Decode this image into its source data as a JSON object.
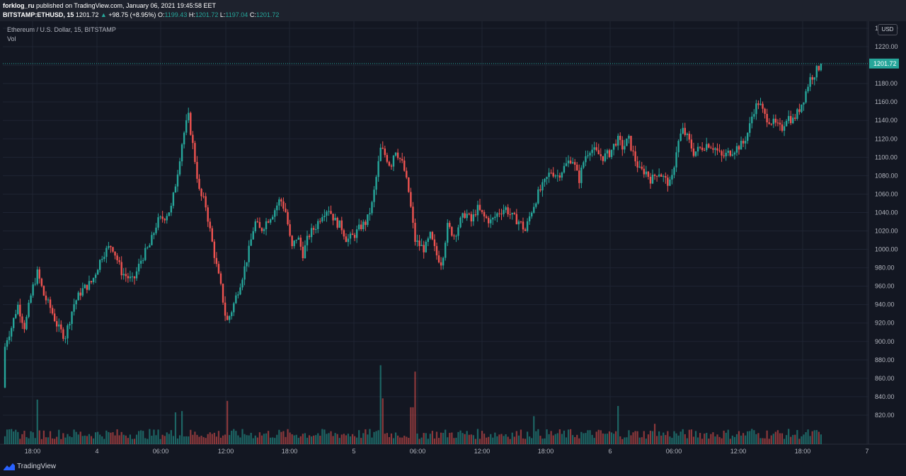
{
  "header": {
    "author": "forklog_ru",
    "published_text": "published on TradingView.com, January 06, 2021 19:45:58 EET",
    "symbol": "BITSTAMP:ETHUSD, 15",
    "last": "1201.72",
    "change_arrow": "▲",
    "change": "+98.75 (+8.95%)",
    "o_label": "O:",
    "o_value": "1199.43",
    "h_label": "H:",
    "h_value": "1201.72",
    "l_label": "L:",
    "l_value": "1197.04",
    "c_label": "C:",
    "c_value": "1201.72"
  },
  "legend": {
    "title": "Ethereum / U.S. Dollar, 15, BITSTAMP",
    "vol": "Vol"
  },
  "currency": "USD",
  "footer": {
    "brand": "TradingView"
  },
  "colors": {
    "background": "#131722",
    "grid": "#1f2433",
    "up": "#26a69a",
    "down": "#ef5350",
    "axis_text": "#b2b5be"
  },
  "chart_data": {
    "type": "candlestick",
    "y_axis": {
      "min": 800,
      "max": 1240,
      "ticks": [
        "1240.00",
        "1220.00",
        "1201.72",
        "1180.00",
        "1160.00",
        "1140.00",
        "1120.00",
        "1100.00",
        "1080.00",
        "1060.00",
        "1040.00",
        "1020.00",
        "1000.00",
        "980.00",
        "960.00",
        "940.00",
        "920.00",
        "900.00",
        "880.00",
        "860.00",
        "840.00",
        "820.00"
      ],
      "last_price_label": "1201.72",
      "last_price": 1201.72
    },
    "x_axis": {
      "ticks": [
        "18:00",
        "4",
        "06:00",
        "12:00",
        "18:00",
        "5",
        "06:00",
        "12:00",
        "18:00",
        "6",
        "06:00",
        "12:00",
        "18:00",
        "7"
      ]
    },
    "price_path": [
      [
        0,
        855
      ],
      [
        8,
        900
      ],
      [
        16,
        915
      ],
      [
        25,
        940
      ],
      [
        35,
        915
      ],
      [
        45,
        955
      ],
      [
        53,
        975
      ],
      [
        62,
        950
      ],
      [
        72,
        935
      ],
      [
        82,
        915
      ],
      [
        92,
        905
      ],
      [
        104,
        940
      ],
      [
        115,
        955
      ],
      [
        130,
        965
      ],
      [
        145,
        995
      ],
      [
        158,
        1005
      ],
      [
        172,
        975
      ],
      [
        188,
        965
      ],
      [
        200,
        990
      ],
      [
        212,
        1005
      ],
      [
        222,
        1030
      ],
      [
        232,
        1035
      ],
      [
        242,
        1045
      ],
      [
        250,
        1080
      ],
      [
        258,
        1120
      ],
      [
        266,
        1145
      ],
      [
        274,
        1105
      ],
      [
        282,
        1060
      ],
      [
        290,
        1050
      ],
      [
        298,
        1015
      ],
      [
        305,
        985
      ],
      [
        313,
        955
      ],
      [
        320,
        920
      ],
      [
        328,
        935
      ],
      [
        336,
        955
      ],
      [
        344,
        975
      ],
      [
        352,
        1000
      ],
      [
        360,
        1030
      ],
      [
        368,
        1020
      ],
      [
        376,
        1030
      ],
      [
        386,
        1040
      ],
      [
        396,
        1055
      ],
      [
        404,
        1040
      ],
      [
        412,
        1000
      ],
      [
        420,
        1015
      ],
      [
        428,
        995
      ],
      [
        436,
        1015
      ],
      [
        446,
        1025
      ],
      [
        456,
        1040
      ],
      [
        464,
        1045
      ],
      [
        474,
        1030
      ],
      [
        482,
        1025
      ],
      [
        490,
        1010
      ],
      [
        500,
        1015
      ],
      [
        510,
        1025
      ],
      [
        518,
        1030
      ],
      [
        526,
        1050
      ],
      [
        532,
        1080
      ],
      [
        538,
        1110
      ],
      [
        546,
        1100
      ],
      [
        552,
        1090
      ],
      [
        558,
        1110
      ],
      [
        564,
        1100
      ],
      [
        570,
        1090
      ],
      [
        578,
        1060
      ],
      [
        586,
        1010
      ],
      [
        592,
        1005
      ],
      [
        600,
        1000
      ],
      [
        608,
        1015
      ],
      [
        616,
        995
      ],
      [
        624,
        985
      ],
      [
        632,
        1025
      ],
      [
        642,
        1015
      ],
      [
        650,
        1030
      ],
      [
        658,
        1040
      ],
      [
        666,
        1030
      ],
      [
        674,
        1045
      ],
      [
        684,
        1035
      ],
      [
        694,
        1030
      ],
      [
        704,
        1040
      ],
      [
        714,
        1045
      ],
      [
        724,
        1035
      ],
      [
        734,
        1030
      ],
      [
        742,
        1020
      ],
      [
        750,
        1040
      ],
      [
        760,
        1060
      ],
      [
        768,
        1070
      ],
      [
        778,
        1085
      ],
      [
        788,
        1080
      ],
      [
        798,
        1090
      ],
      [
        808,
        1100
      ],
      [
        818,
        1075
      ],
      [
        826,
        1100
      ],
      [
        834,
        1110
      ],
      [
        842,
        1105
      ],
      [
        852,
        1100
      ],
      [
        862,
        1105
      ],
      [
        872,
        1120
      ],
      [
        880,
        1110
      ],
      [
        888,
        1120
      ],
      [
        896,
        1100
      ],
      [
        904,
        1085
      ],
      [
        912,
        1085
      ],
      [
        920,
        1075
      ],
      [
        930,
        1085
      ],
      [
        940,
        1075
      ],
      [
        948,
        1070
      ],
      [
        956,
        1110
      ],
      [
        964,
        1130
      ],
      [
        972,
        1120
      ],
      [
        980,
        1105
      ],
      [
        990,
        1110
      ],
      [
        1000,
        1115
      ],
      [
        1010,
        1110
      ],
      [
        1020,
        1100
      ],
      [
        1030,
        1105
      ],
      [
        1040,
        1110
      ],
      [
        1050,
        1115
      ],
      [
        1058,
        1130
      ],
      [
        1064,
        1150
      ],
      [
        1072,
        1160
      ],
      [
        1080,
        1145
      ],
      [
        1088,
        1140
      ],
      [
        1096,
        1135
      ],
      [
        1104,
        1130
      ],
      [
        1112,
        1145
      ],
      [
        1120,
        1140
      ],
      [
        1128,
        1150
      ],
      [
        1136,
        1165
      ],
      [
        1144,
        1185
      ],
      [
        1150,
        1190
      ],
      [
        1156,
        1197
      ],
      [
        1162,
        1201.72
      ]
    ],
    "volume_spikes": [
      {
        "x": 53,
        "vol": 0.35,
        "dir": "down"
      },
      {
        "x": 248,
        "vol": 0.25,
        "dir": "up"
      },
      {
        "x": 256,
        "vol": 0.26,
        "dir": "up"
      },
      {
        "x": 322,
        "vol": 0.34,
        "dir": "up"
      },
      {
        "x": 538,
        "vol": 0.62,
        "dir": "up"
      },
      {
        "x": 542,
        "vol": 0.36,
        "dir": "down"
      },
      {
        "x": 585,
        "vol": 0.57,
        "dir": "down"
      },
      {
        "x": 582,
        "vol": 0.29,
        "dir": "down"
      },
      {
        "x": 753,
        "vol": 0.22,
        "dir": "up"
      },
      {
        "x": 874,
        "vol": 0.3,
        "dir": "down"
      },
      {
        "x": 926,
        "vol": 0.16,
        "dir": "down"
      },
      {
        "x": 1063,
        "vol": 0.12,
        "dir": "down"
      }
    ]
  }
}
